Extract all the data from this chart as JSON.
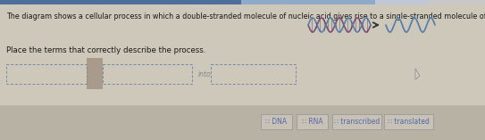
{
  "title": "The diagram shows a cellular process in which a double-stranded molecule of nucleic acid gives rise to a single-stranded molecule of nucleic acid.",
  "instruction": "Place the terms that correctly describe the process.",
  "bg_color": "#cec8ba",
  "top_bar_color": "#4e6f9c",
  "top_bar_right_color": "#8faac8",
  "title_color": "#1a1a1a",
  "title_fontsize": 5.8,
  "instr_fontsize": 6.2,
  "box_border_color": "#7788aa",
  "box_fill_color": "#cec8ba",
  "into_text": "into",
  "wave_color1": "#7b4f7a",
  "wave_color2": "#5b7faa",
  "term_buttons": [
    "∷ DNA",
    "∷ RNA",
    "∷ transcribed",
    "∷ translated"
  ],
  "term_bg": "#c8c2b6",
  "term_border": "#999999",
  "term_text_color": "#5566aa",
  "term_fontsize": 5.5,
  "bottom_strip_color": "#b8b2a4",
  "cursor_color": "#888888"
}
